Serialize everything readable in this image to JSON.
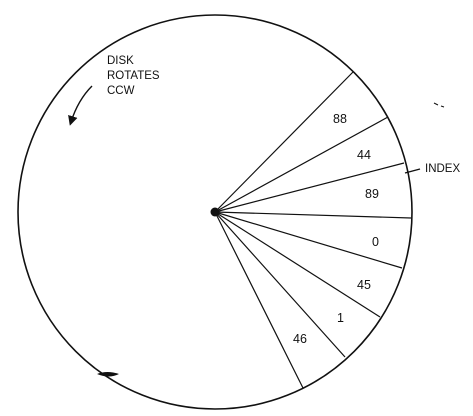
{
  "diagram": {
    "rotation_note": [
      "DISK",
      "ROTATES",
      "CCW"
    ],
    "index_label": "INDEX",
    "sector_labels": [
      "88",
      "44",
      "89",
      "0",
      "45",
      "1",
      "46"
    ],
    "colors": {
      "ink": "#111111",
      "background": "#ffffff"
    }
  }
}
